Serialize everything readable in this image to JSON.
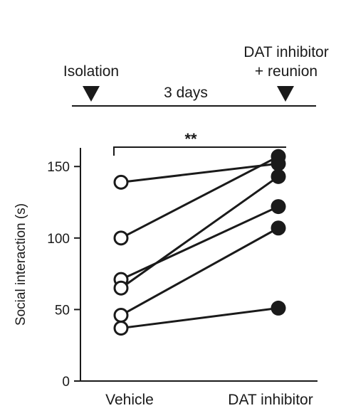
{
  "timeline": {
    "left_label": "Isolation",
    "middle_label": "3 days",
    "right_label_line1": "DAT inhibitor",
    "right_label_line2": "+ reunion"
  },
  "chart_data": {
    "type": "scatter",
    "subtype": "paired-line",
    "categories": [
      "Vehicle",
      "DAT inhibitor"
    ],
    "ylabel": "Social interaction (s)",
    "ylim": [
      0,
      170
    ],
    "yticks": [
      0,
      50,
      100,
      150
    ],
    "significance": "**",
    "pairs": [
      {
        "vehicle": 139,
        "dat_inhibitor": 152
      },
      {
        "vehicle": 100,
        "dat_inhibitor": 157
      },
      {
        "vehicle": 71,
        "dat_inhibitor": 122
      },
      {
        "vehicle": 65,
        "dat_inhibitor": 143
      },
      {
        "vehicle": 46,
        "dat_inhibitor": 107
      },
      {
        "vehicle": 37,
        "dat_inhibitor": 51
      }
    ],
    "markers": {
      "vehicle": "open-circle",
      "dat_inhibitor": "filled-circle"
    },
    "colors": {
      "line": "#1a1a1a",
      "marker_fill": "#1a1a1a",
      "open_fill": "#ffffff"
    }
  }
}
